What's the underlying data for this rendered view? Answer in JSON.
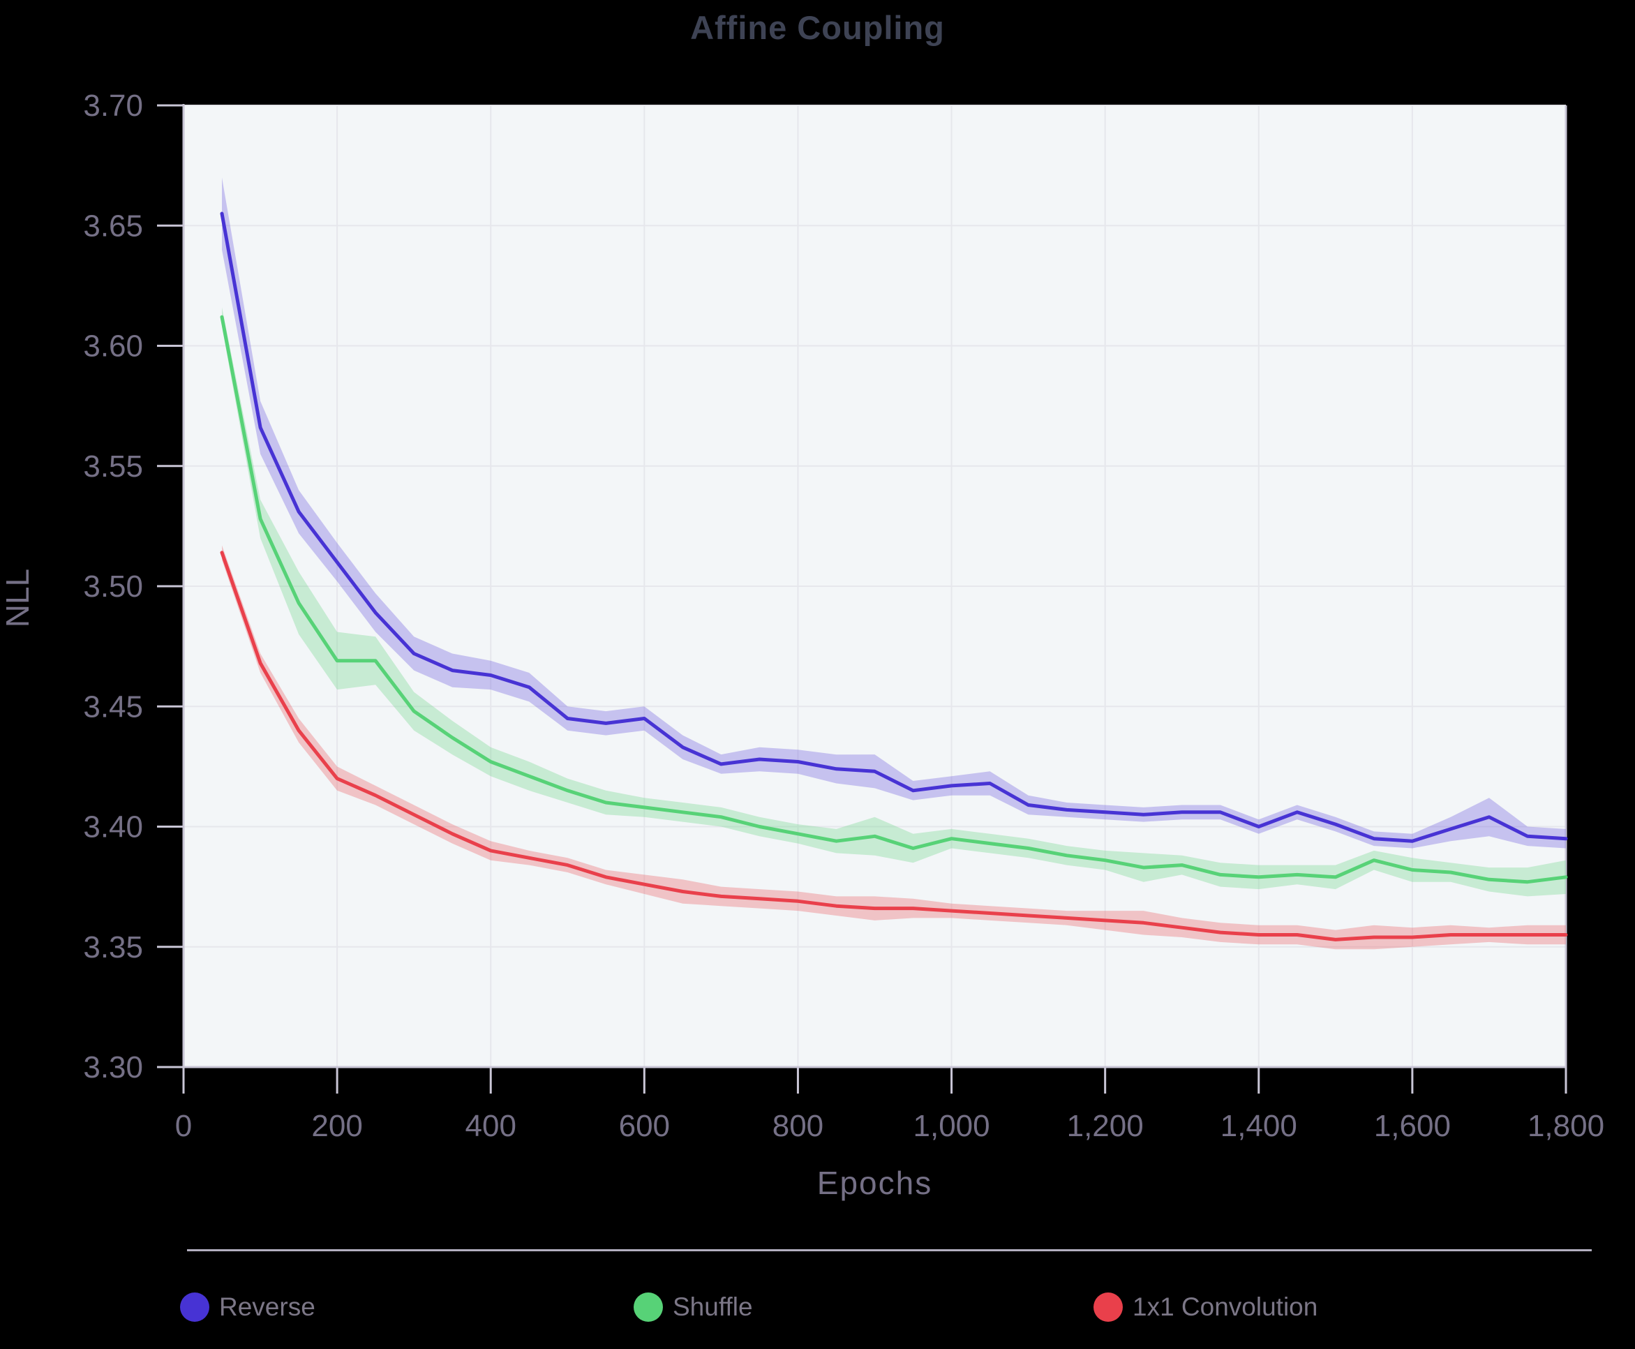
{
  "title": "Affine Coupling",
  "axes": {
    "x": {
      "label": "Epochs",
      "tick_values": [
        0,
        200,
        400,
        600,
        800,
        1000,
        1200,
        1400,
        1600,
        1800
      ],
      "tick_labels": [
        "0",
        "200",
        "400",
        "600",
        "800",
        "1,000",
        "1,200",
        "1,400",
        "1,600",
        "1,800"
      ]
    },
    "y": {
      "label": "NLL",
      "tick_values": [
        3.7,
        3.65,
        3.6,
        3.55,
        3.5,
        3.45,
        3.4,
        3.35,
        3.3
      ],
      "tick_labels": [
        "3.70",
        "3.65",
        "3.60",
        "3.55",
        "3.50",
        "3.45",
        "3.40",
        "3.35",
        "3.30"
      ]
    }
  },
  "colors": {
    "background": "#000000",
    "plot_background": "#f3f6f8",
    "gridline": "#e6e7ec",
    "axis_line": "#c9c6d6",
    "title_text": "#3e4354",
    "tick_text": "#757086",
    "legend_text": "#7c7787"
  },
  "chart_data": {
    "type": "line",
    "title": "Affine Coupling",
    "xlabel": "Epochs",
    "ylabel": "NLL",
    "xlim": [
      0,
      1800
    ],
    "ylim": [
      3.3,
      3.7
    ],
    "grid": true,
    "legend_position": "bottom",
    "x": [
      50,
      100,
      150,
      200,
      250,
      300,
      350,
      400,
      450,
      500,
      550,
      600,
      650,
      700,
      750,
      800,
      850,
      900,
      950,
      1000,
      1050,
      1100,
      1150,
      1200,
      1250,
      1300,
      1350,
      1400,
      1450,
      1500,
      1550,
      1600,
      1650,
      1700,
      1750,
      1800
    ],
    "series": [
      {
        "name": "Reverse",
        "color": "#4733d4",
        "band_color": "#6a57dd",
        "values": [
          3.655,
          3.566,
          3.531,
          3.51,
          3.489,
          3.472,
          3.465,
          3.463,
          3.458,
          3.445,
          3.443,
          3.445,
          3.433,
          3.426,
          3.428,
          3.427,
          3.424,
          3.423,
          3.415,
          3.417,
          3.418,
          3.409,
          3.407,
          3.406,
          3.405,
          3.406,
          3.406,
          3.4,
          3.406,
          3.401,
          3.395,
          3.394,
          3.399,
          3.404,
          3.396,
          3.395
        ],
        "band_halfwidth": [
          0.015,
          0.011,
          0.009,
          0.008,
          0.008,
          0.007,
          0.007,
          0.006,
          0.006,
          0.005,
          0.005,
          0.005,
          0.005,
          0.004,
          0.005,
          0.005,
          0.006,
          0.007,
          0.004,
          0.004,
          0.005,
          0.004,
          0.003,
          0.003,
          0.003,
          0.003,
          0.003,
          0.003,
          0.003,
          0.003,
          0.003,
          0.003,
          0.005,
          0.008,
          0.004,
          0.004
        ]
      },
      {
        "name": "Shuffle",
        "color": "#57d277",
        "band_color": "#6cd488",
        "values": [
          3.612,
          3.528,
          3.493,
          3.469,
          3.469,
          3.448,
          3.437,
          3.427,
          3.421,
          3.415,
          3.41,
          3.408,
          3.406,
          3.404,
          3.4,
          3.397,
          3.394,
          3.396,
          3.391,
          3.395,
          3.393,
          3.391,
          3.388,
          3.386,
          3.383,
          3.384,
          3.38,
          3.379,
          3.38,
          3.379,
          3.386,
          3.382,
          3.381,
          3.378,
          3.377,
          3.379
        ],
        "band_halfwidth": [
          0.004,
          0.008,
          0.013,
          0.012,
          0.01,
          0.008,
          0.007,
          0.006,
          0.006,
          0.005,
          0.005,
          0.004,
          0.004,
          0.004,
          0.004,
          0.004,
          0.005,
          0.008,
          0.006,
          0.004,
          0.004,
          0.004,
          0.004,
          0.004,
          0.006,
          0.004,
          0.005,
          0.005,
          0.004,
          0.005,
          0.004,
          0.005,
          0.004,
          0.005,
          0.006,
          0.007
        ]
      },
      {
        "name": "1x1 Convolution",
        "color": "#e9404b",
        "band_color": "#e95b62",
        "values": [
          3.514,
          3.468,
          3.44,
          3.42,
          3.413,
          3.405,
          3.397,
          3.39,
          3.387,
          3.384,
          3.379,
          3.376,
          3.373,
          3.371,
          3.37,
          3.369,
          3.367,
          3.366,
          3.366,
          3.365,
          3.364,
          3.363,
          3.362,
          3.361,
          3.36,
          3.358,
          3.356,
          3.355,
          3.355,
          3.353,
          3.354,
          3.354,
          3.355,
          3.355,
          3.355,
          3.355
        ],
        "band_halfwidth": [
          0.003,
          0.004,
          0.005,
          0.005,
          0.004,
          0.004,
          0.004,
          0.004,
          0.003,
          0.003,
          0.003,
          0.004,
          0.005,
          0.004,
          0.004,
          0.004,
          0.004,
          0.005,
          0.004,
          0.003,
          0.003,
          0.003,
          0.003,
          0.004,
          0.005,
          0.004,
          0.004,
          0.004,
          0.004,
          0.004,
          0.005,
          0.004,
          0.004,
          0.003,
          0.004,
          0.004
        ]
      }
    ]
  }
}
